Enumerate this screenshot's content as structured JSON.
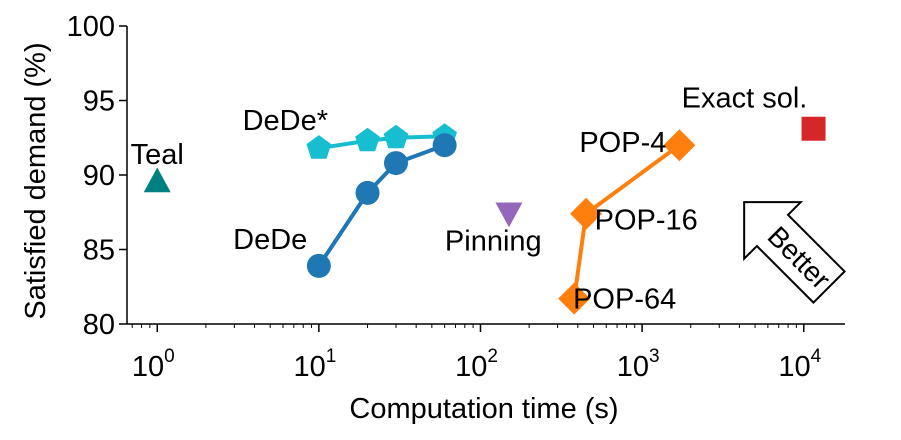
{
  "chart_data": {
    "type": "scatter",
    "title": "",
    "xlabel": "Computation time (s)",
    "ylabel": "Satisfied demand (%)",
    "xscale": "log",
    "xlim": [
      0.65,
      18000
    ],
    "ylim": [
      80,
      100
    ],
    "xticks": [
      {
        "value": 1,
        "base": "10",
        "exp": "0"
      },
      {
        "value": 10,
        "base": "10",
        "exp": "1"
      },
      {
        "value": 100,
        "base": "10",
        "exp": "2"
      },
      {
        "value": 1000,
        "base": "10",
        "exp": "3"
      },
      {
        "value": 10000,
        "base": "10",
        "exp": "4"
      }
    ],
    "yticks": [
      80,
      85,
      90,
      95,
      100
    ],
    "grid": false,
    "series": [
      {
        "name": "DeDe*",
        "marker": "pentagon",
        "color": "#17becf",
        "line": true,
        "points": [
          {
            "x": 10,
            "y": 91.8
          },
          {
            "x": 20,
            "y": 92.3
          },
          {
            "x": 30,
            "y": 92.5
          },
          {
            "x": 60,
            "y": 92.6
          }
        ]
      },
      {
        "name": "DeDe",
        "marker": "circle",
        "color": "#1f77b4",
        "line": true,
        "points": [
          {
            "x": 10,
            "y": 83.9
          },
          {
            "x": 20,
            "y": 88.8
          },
          {
            "x": 30,
            "y": 90.8
          },
          {
            "x": 60,
            "y": 92.0
          }
        ]
      },
      {
        "name": "Teal",
        "marker": "triangle-up",
        "color": "#008080",
        "line": false,
        "points": [
          {
            "x": 1,
            "y": 89.5
          }
        ]
      },
      {
        "name": "Pinning",
        "marker": "triangle-down",
        "color": "#9467bd",
        "line": false,
        "points": [
          {
            "x": 150,
            "y": 87.5
          }
        ]
      },
      {
        "name": "POP",
        "marker": "diamond",
        "color": "#ff7f0e",
        "line": true,
        "points": [
          {
            "x": 1700,
            "y": 92.0,
            "label": "POP-4"
          },
          {
            "x": 450,
            "y": 87.4,
            "label": "POP-16"
          },
          {
            "x": 380,
            "y": 81.7,
            "label": "POP-64"
          }
        ]
      },
      {
        "name": "Exact sol.",
        "marker": "square",
        "color": "#d62728",
        "line": false,
        "points": [
          {
            "x": 11500,
            "y": 93.1
          }
        ]
      }
    ],
    "annotations": [
      {
        "text": "DeDe*",
        "x": 6.2,
        "y": 93.7
      },
      {
        "text": "DeDe",
        "x": 5.0,
        "y": 85.7
      },
      {
        "text": "Teal",
        "x": 1.0,
        "y": 91.4
      },
      {
        "text": "Pinning",
        "x": 120,
        "y": 85.6
      },
      {
        "text": "POP-4",
        "x": 760,
        "y": 92.2
      },
      {
        "text": "POP-16",
        "x": 1060,
        "y": 87.0
      },
      {
        "text": "POP-64",
        "x": 780,
        "y": 81.7
      },
      {
        "text": "Exact sol.",
        "x": 4300,
        "y": 95.2
      }
    ],
    "arrow_label": "Better"
  }
}
